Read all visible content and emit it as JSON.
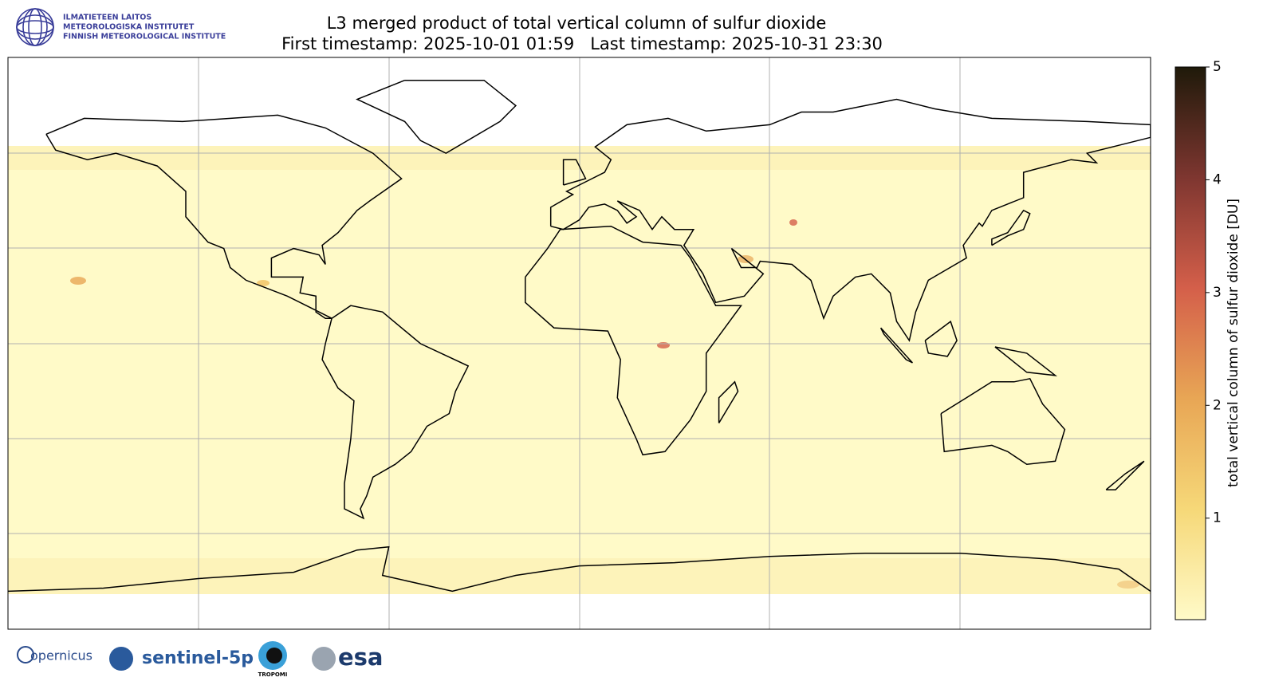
{
  "header": {
    "institute": [
      "ILMATIETEEN LAITOS",
      "METEOROLOGISKA INSTITUTET",
      "FINNISH METEOROLOGICAL INSTITUTE"
    ],
    "title": "L3 merged product of total vertical column of sulfur dioxide",
    "subtitle": "First timestamp: 2025-10-01 01:59   Last timestamp: 2025-10-31 23:30"
  },
  "colorbar": {
    "label": "total vertical column of sulfur dioxide [DU]",
    "lim": [
      0.1,
      5
    ],
    "ticks": [
      1,
      2,
      3,
      4,
      5
    ]
  },
  "footer": {
    "logos": [
      "opernicus",
      "sentinel-5p",
      "TROPOMI",
      "esa"
    ]
  }
}
